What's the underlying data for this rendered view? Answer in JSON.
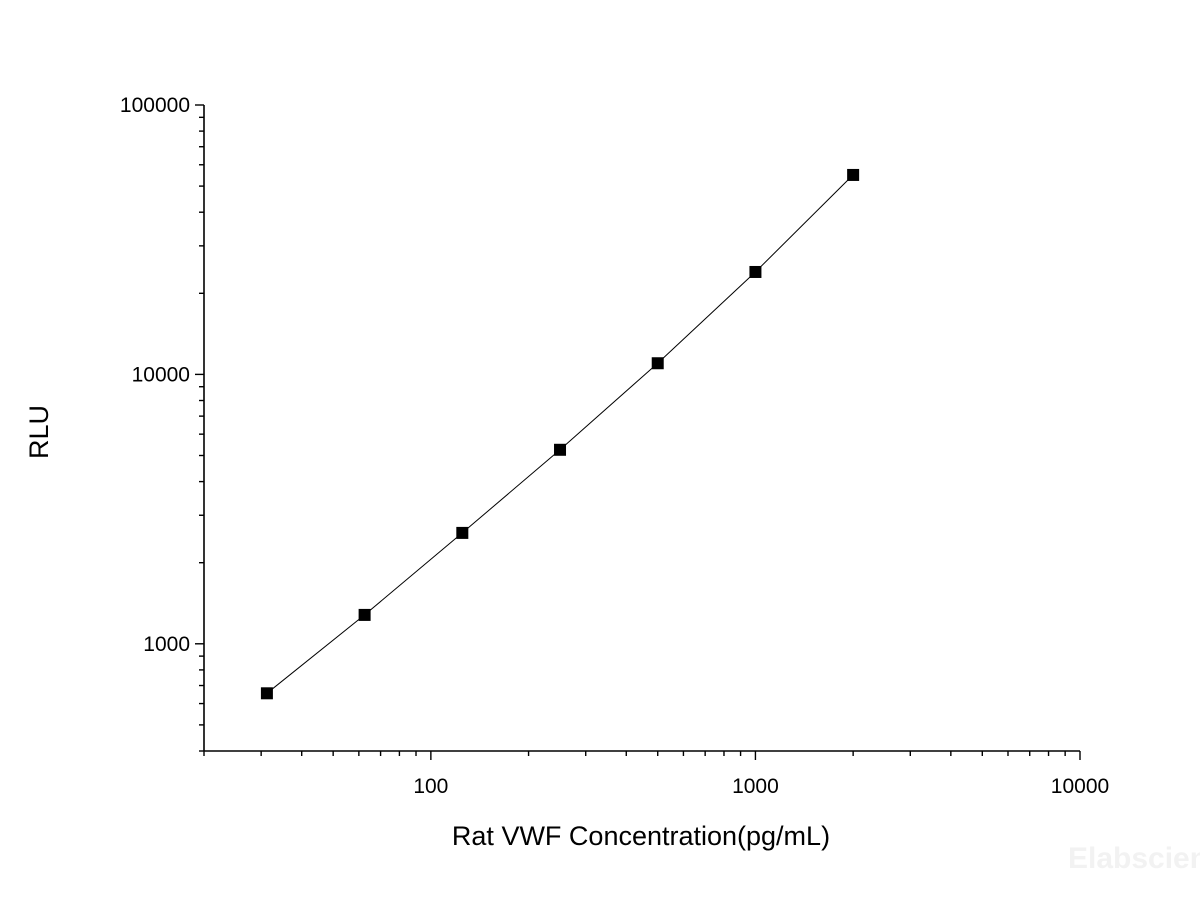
{
  "chart_data": {
    "type": "scatter",
    "xlabel": "Rat VWF Concentration(pg/mL)",
    "ylabel": "RLU",
    "x_scale": "log",
    "y_scale": "log",
    "xlim": [
      20,
      10000
    ],
    "ylim": [
      400,
      100000
    ],
    "x_major_ticks": [
      100,
      1000,
      10000
    ],
    "x_tick_labels": [
      "100",
      "1000",
      "10000"
    ],
    "y_major_ticks": [
      1000,
      10000,
      100000
    ],
    "y_tick_labels": [
      "1000",
      "10000",
      "100000"
    ],
    "grid": false,
    "legend": "none",
    "marker": "square",
    "connect_points": true,
    "series": [
      {
        "x": [
          31.25,
          62.5,
          125,
          250,
          500,
          1000,
          2000
        ],
        "y": [
          655,
          1280,
          2580,
          5250,
          11000,
          24000,
          55000
        ]
      }
    ],
    "watermark": "Elabscience",
    "colors": {
      "marker": "#000000",
      "line": "#000000",
      "axis": "#000000"
    }
  }
}
